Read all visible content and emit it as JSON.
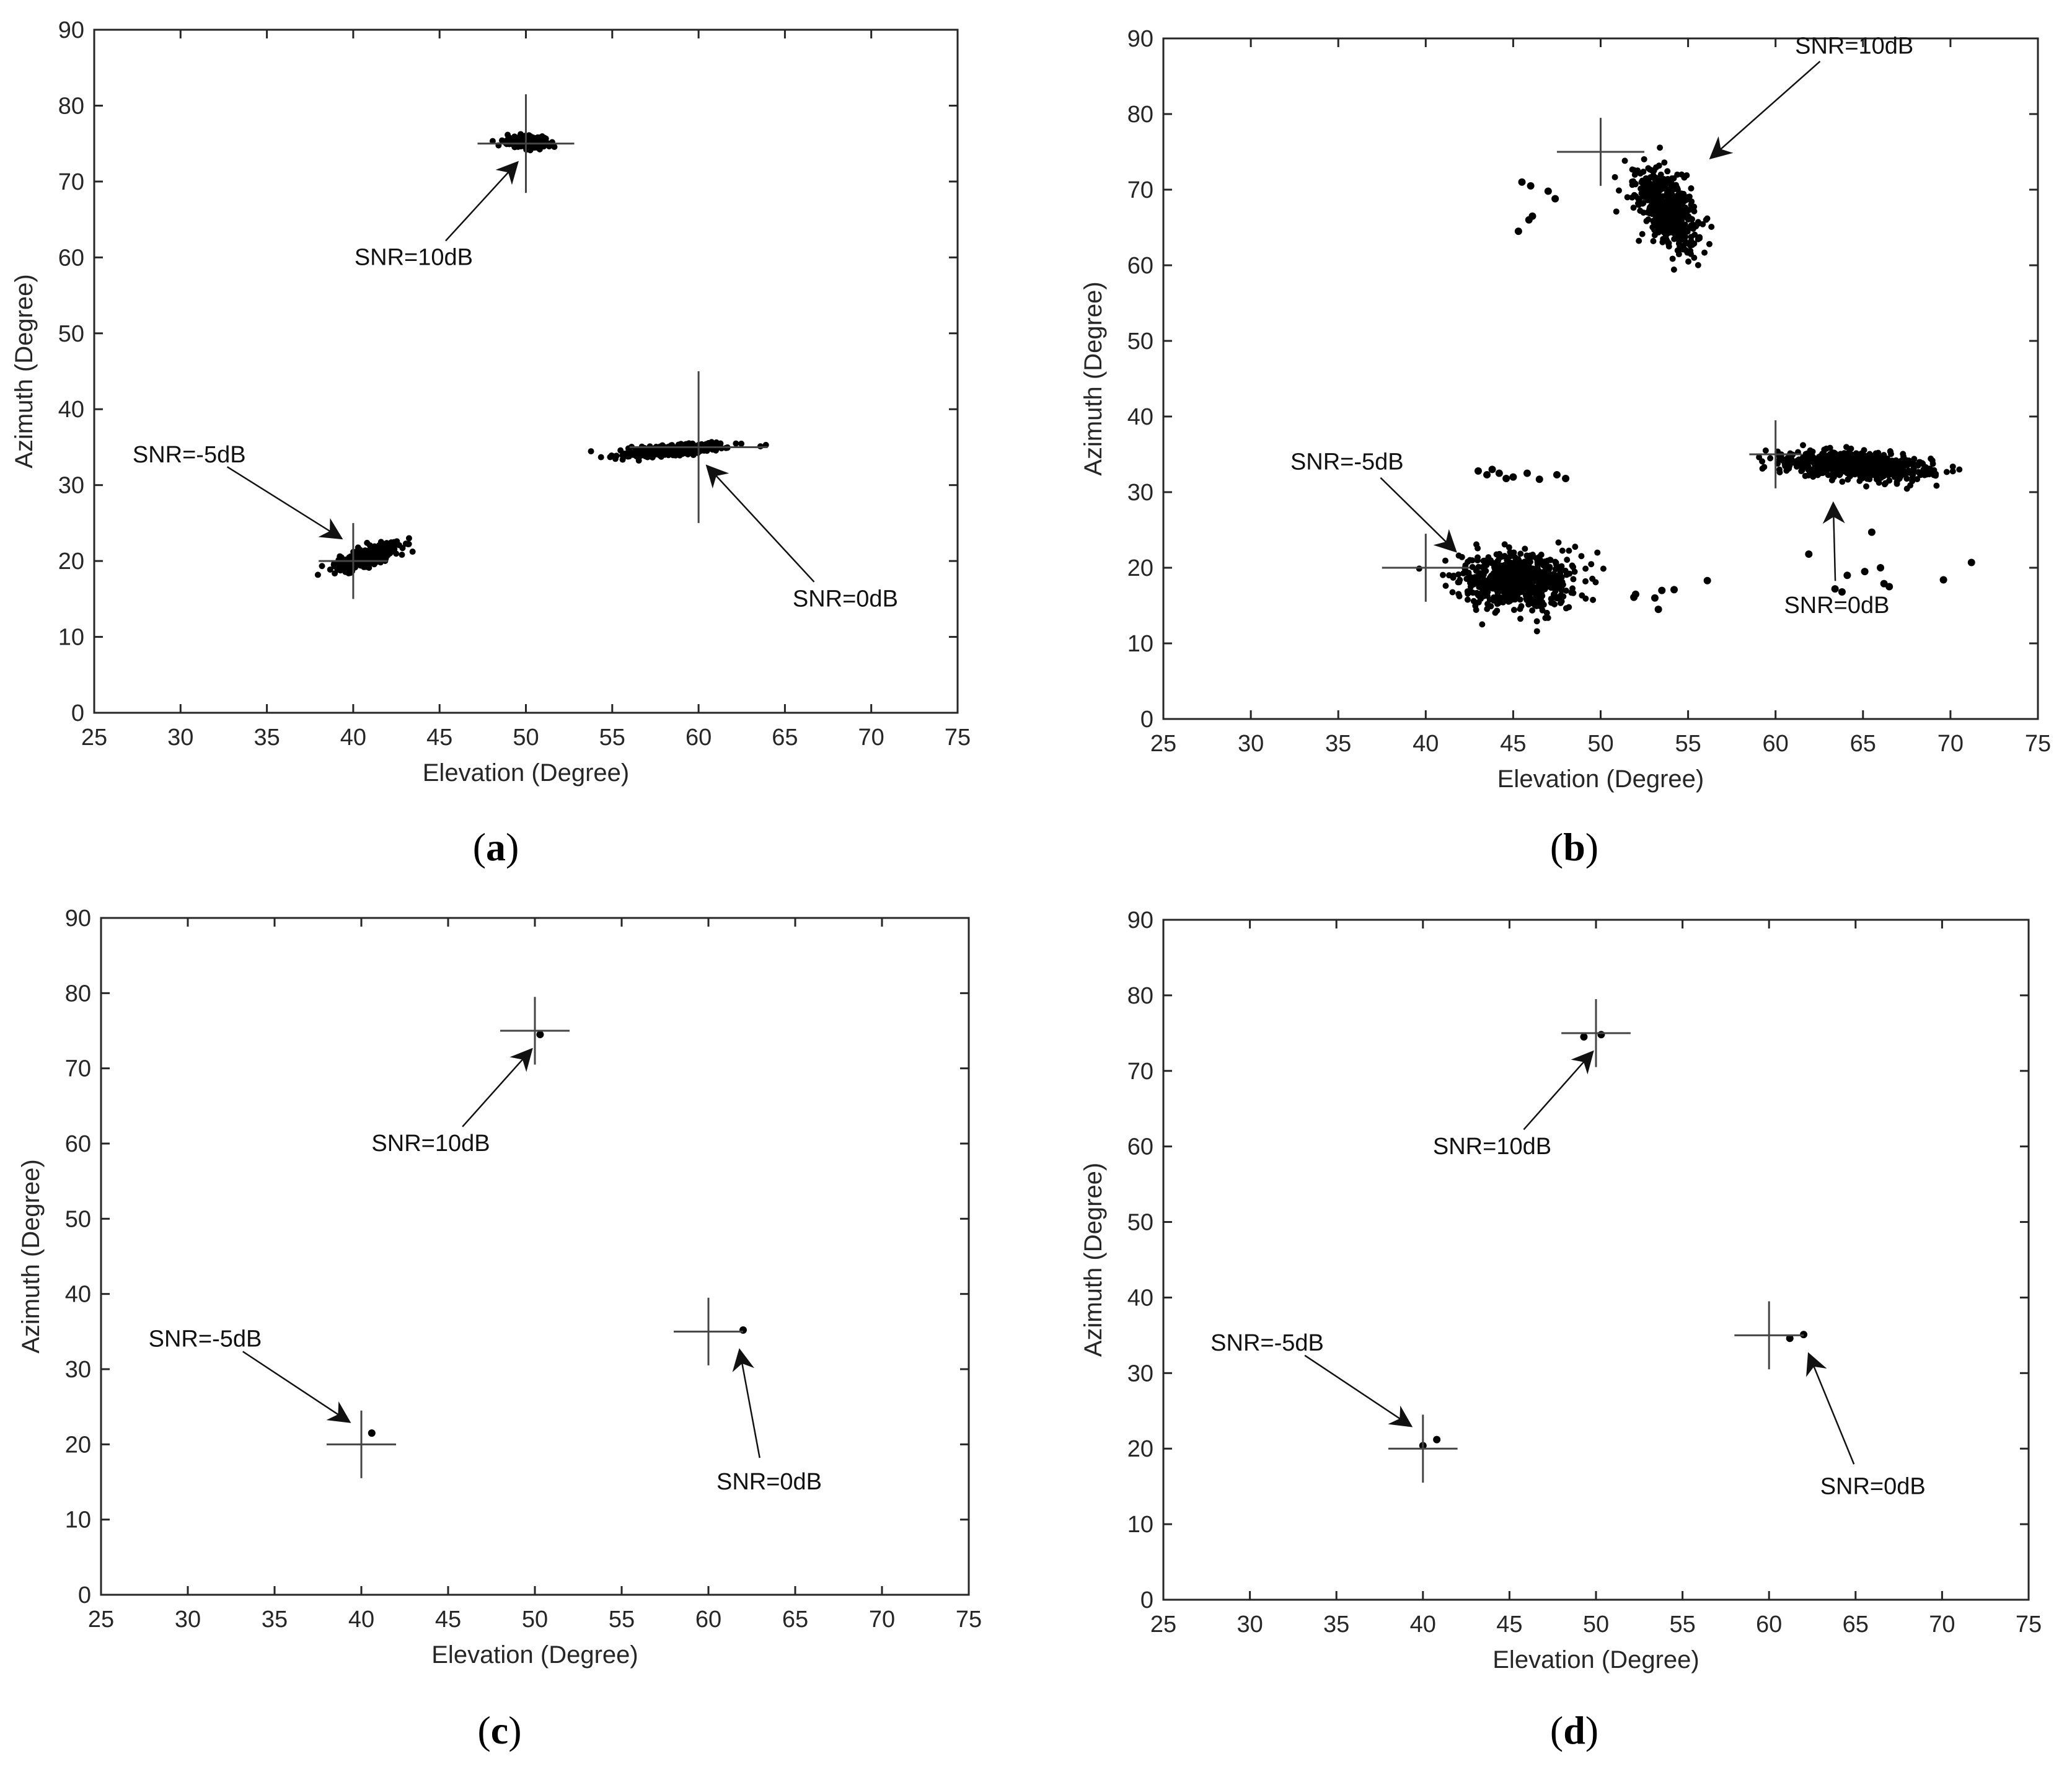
{
  "chart_data": [
    {
      "id": "a",
      "caption_letter": "a",
      "type": "scatter",
      "xlabel": "Elevation (Degree)",
      "ylabel": "Azimuth (Degree)",
      "xlim": [
        25,
        75
      ],
      "ylim": [
        0,
        90
      ],
      "xticks": [
        25,
        30,
        35,
        40,
        45,
        50,
        55,
        60,
        65,
        70,
        75
      ],
      "yticks": [
        0,
        10,
        20,
        30,
        40,
        50,
        60,
        70,
        80,
        90
      ],
      "true_sources": [
        {
          "x": 50,
          "y": 75,
          "hx": 2.8,
          "hy": 6.5
        },
        {
          "x": 40,
          "y": 20,
          "hx": 2.0,
          "hy": 5.0
        },
        {
          "x": 60,
          "y": 35,
          "hx": 4.0,
          "hy": 10.0
        }
      ],
      "clusters": [
        {
          "cx": 50,
          "cy": 75.2,
          "sx": 0.55,
          "sy": 0.35,
          "n": 420,
          "corr": 0.0
        },
        {
          "cx": 40.8,
          "cy": 20.5,
          "sx": 0.9,
          "sy": 0.9,
          "n": 420,
          "corr": 0.75
        },
        {
          "cx": 58.5,
          "cy": 34.6,
          "sx": 1.5,
          "sy": 0.45,
          "n": 420,
          "corr": 0.7
        }
      ],
      "extra_points": [],
      "annotations": [
        {
          "text": "SNR=10dB",
          "tx": 43.5,
          "ty": 59,
          "ax": 49.5,
          "ay": 72.5
        },
        {
          "text": "SNR=-5dB",
          "tx": 30.5,
          "ty": 33,
          "ax": 39.3,
          "ay": 23
        },
        {
          "text": "SNR=0dB",
          "tx": 68.5,
          "ty": 14,
          "ax": 60.5,
          "ay": 32.5
        }
      ]
    },
    {
      "id": "b",
      "caption_letter": "b",
      "type": "scatter",
      "xlabel": "Elevation (Degree)",
      "ylabel": "Azimuth (Degree)",
      "xlim": [
        25,
        75
      ],
      "ylim": [
        0,
        90
      ],
      "xticks": [
        25,
        30,
        35,
        40,
        45,
        50,
        55,
        60,
        65,
        70,
        75
      ],
      "yticks": [
        0,
        10,
        20,
        30,
        40,
        50,
        60,
        70,
        80,
        90
      ],
      "true_sources": [
        {
          "x": 50,
          "y": 75,
          "hx": 2.5,
          "hy": 4.5
        },
        {
          "x": 40,
          "y": 20,
          "hx": 2.5,
          "hy": 4.5
        },
        {
          "x": 60,
          "y": 35,
          "hx": 1.5,
          "hy": 4.5
        }
      ],
      "clusters": [
        {
          "cx": 53.8,
          "cy": 67.5,
          "sx": 0.9,
          "sy": 2.8,
          "n": 480,
          "corr": -0.55
        },
        {
          "cx": 45.2,
          "cy": 18.2,
          "sx": 1.7,
          "sy": 1.8,
          "n": 650,
          "corr": 0.0
        },
        {
          "cx": 64.6,
          "cy": 33.5,
          "sx": 2.0,
          "sy": 0.9,
          "n": 650,
          "corr": -0.3
        }
      ],
      "extra_points": [
        [
          45.5,
          71.0
        ],
        [
          46.0,
          70.5
        ],
        [
          47.0,
          69.8
        ],
        [
          47.4,
          68.8
        ],
        [
          46.1,
          66.5
        ],
        [
          45.9,
          66.0
        ],
        [
          45.3,
          64.5
        ],
        [
          43.0,
          32.8
        ],
        [
          43.5,
          32.3
        ],
        [
          43.8,
          33.0
        ],
        [
          44.2,
          32.5
        ],
        [
          44.6,
          31.8
        ],
        [
          45.0,
          32.0
        ],
        [
          45.8,
          32.5
        ],
        [
          46.5,
          31.7
        ],
        [
          47.5,
          32.3
        ],
        [
          48.0,
          31.8
        ],
        [
          52.0,
          16.5
        ],
        [
          53.1,
          16.0
        ],
        [
          53.5,
          17.0
        ],
        [
          54.2,
          17.1
        ],
        [
          53.3,
          14.5
        ],
        [
          56.1,
          18.3
        ],
        [
          51.9,
          16.1
        ],
        [
          61.9,
          21.8
        ],
        [
          64.1,
          19.0
        ],
        [
          63.4,
          17.2
        ],
        [
          65.1,
          19.5
        ],
        [
          66.2,
          17.9
        ],
        [
          66.0,
          20.0
        ],
        [
          65.5,
          24.7
        ],
        [
          63.8,
          16.8
        ],
        [
          69.6,
          18.4
        ],
        [
          71.2,
          20.7
        ],
        [
          66.5,
          17.5
        ]
      ],
      "annotations": [
        {
          "text": "SNR=10dB",
          "tx": 64.5,
          "ty": 88,
          "ax": 56.3,
          "ay": 74.2
        },
        {
          "text": "SNR=-5dB",
          "tx": 35.5,
          "ty": 33,
          "ax": 41.7,
          "ay": 22.2
        },
        {
          "text": "SNR=0dB",
          "tx": 63.5,
          "ty": 14,
          "ax": 63.3,
          "ay": 28.5
        }
      ]
    },
    {
      "id": "c",
      "caption_letter": "c",
      "type": "scatter",
      "xlabel": "Elevation (Degree)",
      "ylabel": "Azimuth (Degree)",
      "xlim": [
        25,
        75
      ],
      "ylim": [
        0,
        90
      ],
      "xticks": [
        25,
        30,
        35,
        40,
        45,
        50,
        55,
        60,
        65,
        70,
        75
      ],
      "yticks": [
        0,
        10,
        20,
        30,
        40,
        50,
        60,
        70,
        80,
        90
      ],
      "true_sources": [
        {
          "x": 50,
          "y": 75,
          "hx": 2.0,
          "hy": 4.5
        },
        {
          "x": 40,
          "y": 20,
          "hx": 2.0,
          "hy": 4.5
        },
        {
          "x": 60,
          "y": 35,
          "hx": 2.0,
          "hy": 4.5
        }
      ],
      "clusters": [],
      "extra_points": [
        [
          50.3,
          74.5
        ],
        [
          40.6,
          21.5
        ],
        [
          62.0,
          35.2
        ]
      ],
      "annotations": [
        {
          "text": "SNR=10dB",
          "tx": 44.0,
          "ty": 59,
          "ax": 49.8,
          "ay": 72.5
        },
        {
          "text": "SNR=-5dB",
          "tx": 31.0,
          "ty": 33,
          "ax": 39.3,
          "ay": 23
        },
        {
          "text": "SNR=0dB",
          "tx": 63.5,
          "ty": 14,
          "ax": 61.8,
          "ay": 32.5
        }
      ]
    },
    {
      "id": "d",
      "caption_letter": "d",
      "type": "scatter",
      "xlabel": "Elevation (Degree)",
      "ylabel": "Azimuth (Degree)",
      "xlim": [
        25,
        75
      ],
      "ylim": [
        0,
        90
      ],
      "xticks": [
        25,
        30,
        35,
        40,
        45,
        50,
        55,
        60,
        65,
        70,
        75
      ],
      "yticks": [
        0,
        10,
        20,
        30,
        40,
        50,
        60,
        70,
        80,
        90
      ],
      "true_sources": [
        {
          "x": 50,
          "y": 75,
          "hx": 2.0,
          "hy": 4.5
        },
        {
          "x": 40,
          "y": 20,
          "hx": 2.0,
          "hy": 4.5
        },
        {
          "x": 60,
          "y": 35,
          "hx": 2.0,
          "hy": 4.5
        }
      ],
      "clusters": [],
      "extra_points": [
        [
          49.3,
          74.5
        ],
        [
          50.3,
          74.8
        ],
        [
          40.8,
          21.2
        ],
        [
          40.0,
          20.4
        ],
        [
          61.2,
          34.6
        ],
        [
          62.0,
          35.1
        ]
      ],
      "annotations": [
        {
          "text": "SNR=10dB",
          "tx": 44.0,
          "ty": 59,
          "ax": 49.8,
          "ay": 72.5
        },
        {
          "text": "SNR=-5dB",
          "tx": 31.0,
          "ty": 33,
          "ax": 39.3,
          "ay": 23
        },
        {
          "text": "SNR=0dB",
          "tx": 66.0,
          "ty": 14,
          "ax": 62.3,
          "ay": 32.5
        }
      ]
    }
  ]
}
